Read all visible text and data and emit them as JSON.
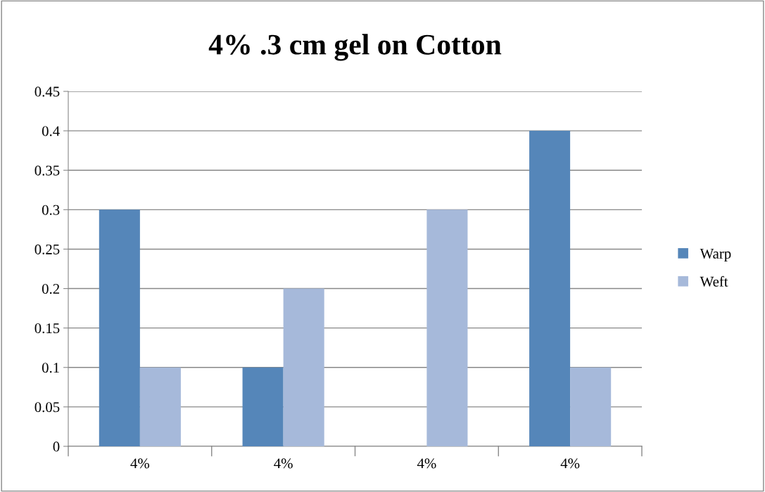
{
  "chart_data": {
    "type": "bar",
    "title": "4% .3 cm gel on Cotton",
    "categories": [
      "4%",
      "4%",
      "4%",
      "4%"
    ],
    "series": [
      {
        "name": "Warp",
        "color": "#5586b9",
        "values": [
          0.3,
          0.1,
          0,
          0.4
        ]
      },
      {
        "name": "Weft",
        "color": "#a6b9da",
        "values": [
          0.1,
          0.2,
          0.3,
          0.1
        ]
      }
    ],
    "ylim": [
      0,
      0.45
    ],
    "yticks": [
      0,
      0.05,
      0.1,
      0.15,
      0.2,
      0.25,
      0.3,
      0.35,
      0.4,
      0.45
    ],
    "grid": "y",
    "legend": "right"
  }
}
